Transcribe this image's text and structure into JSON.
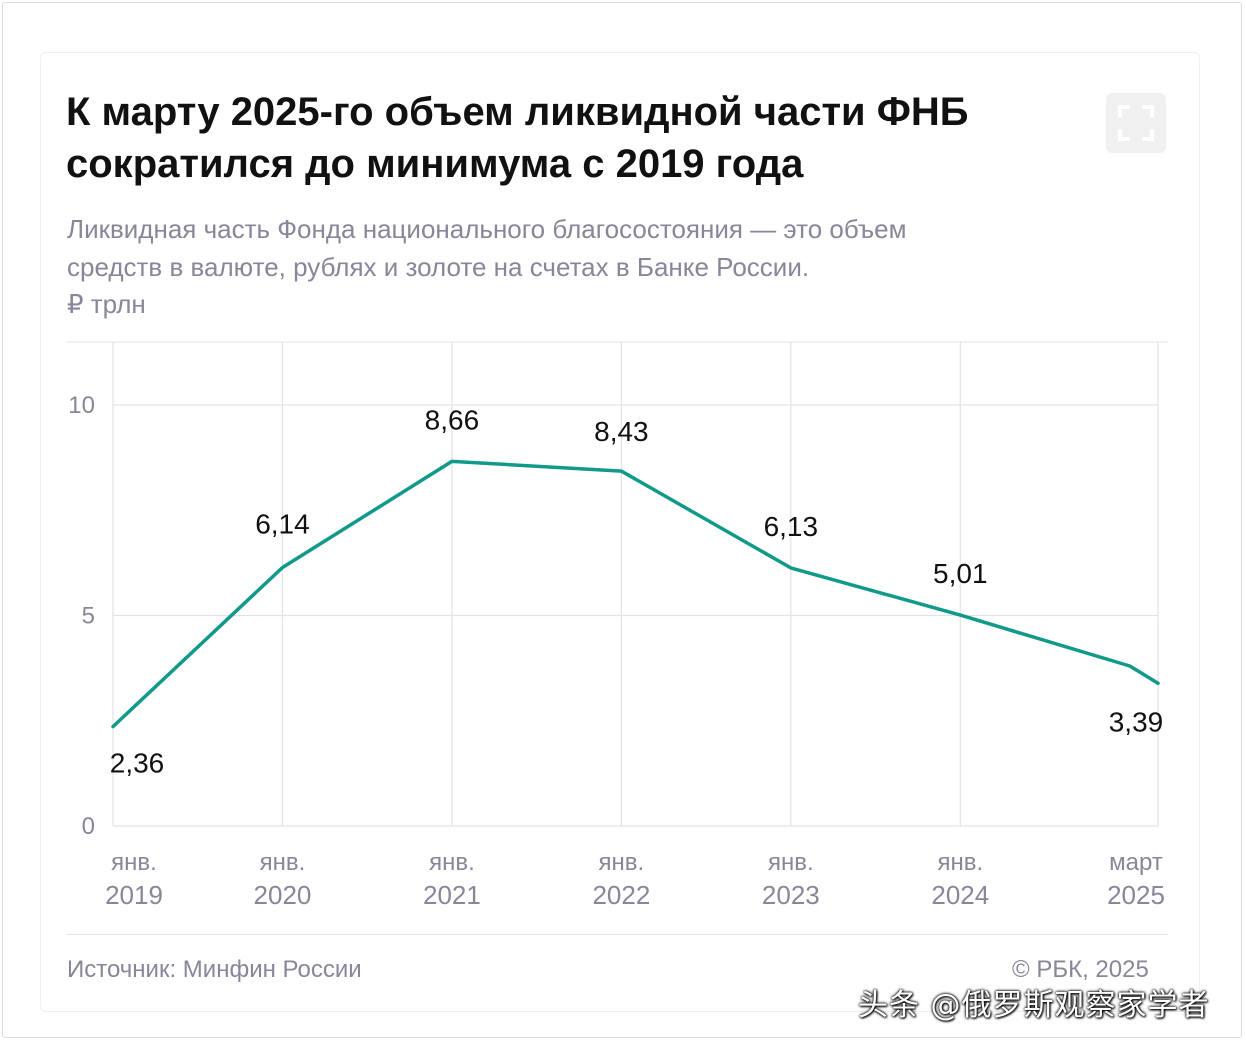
{
  "header": {
    "title_line1": "К марту 2025-го объем ликвидной части ФНБ",
    "title_line2": "сократился до минимума с 2019 года",
    "subtitle_line1": "Ликвидная часть Фонда национального благосостояния — это объем",
    "subtitle_line2": "средств в валюте, рублях и золоте на счетах в Банке России.",
    "unit": "₽ трлн"
  },
  "footer": {
    "source": "Источник: Минфин России",
    "copyright": "© РБК, 2025",
    "watermark": "头条 @俄罗斯观察家学者"
  },
  "colors": {
    "line": "#11998a",
    "grid": "#e3e3e3",
    "axis_text": "#8a8598",
    "label_text": "#111111"
  },
  "chart_data": {
    "type": "line",
    "title": "К марту 2025-го объем ликвидной части ФНБ сократился до минимума с 2019 года",
    "ylabel": "₽ трлн",
    "ylim": [
      0,
      10
    ],
    "yticks": [
      0,
      5,
      10
    ],
    "grid": true,
    "categories": [
      [
        "янв.",
        "2019"
      ],
      [
        "янв.",
        "2020"
      ],
      [
        "янв.",
        "2021"
      ],
      [
        "янв.",
        "2022"
      ],
      [
        "янв.",
        "2023"
      ],
      [
        "янв.",
        "2024"
      ],
      [
        "март",
        "2025"
      ]
    ],
    "series": [
      {
        "points": [
          {
            "x": "янв. 2019",
            "y": 2.36,
            "label": "2,36"
          },
          {
            "x": "янв. 2020",
            "y": 6.14,
            "label": "6,14"
          },
          {
            "x": "янв. 2021",
            "y": 8.66,
            "label": "8,66"
          },
          {
            "x": "янв. 2022",
            "y": 8.43,
            "label": "8,43"
          },
          {
            "x": "янв. 2023",
            "y": 6.13,
            "label": "6,13"
          },
          {
            "x": "янв. 2024",
            "y": 5.01,
            "label": "5,01"
          },
          {
            "x": "янв. 2025",
            "y": 3.8,
            "label": ""
          },
          {
            "x": "март 2025",
            "y": 3.39,
            "label": "3,39"
          }
        ]
      }
    ]
  }
}
